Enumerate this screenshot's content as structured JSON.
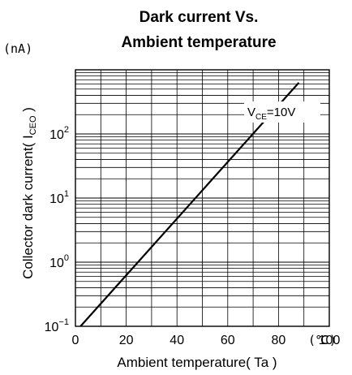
{
  "chart_data": {
    "type": "line",
    "title_line1": "Dark current Vs.",
    "title_line2": "Ambient temperature",
    "xlabel": "Ambient temperature( Ta )",
    "x_unit": "(℃)",
    "ylabel_main": "Collector dark current( I",
    "ylabel_sub": "CEO",
    "ylabel_close": " )",
    "y_unit": "(nA)",
    "xlim": [
      0,
      100
    ],
    "ylim": [
      0.1,
      1000
    ],
    "y_scale": "log",
    "grid": true,
    "x_ticks": [
      0,
      20,
      40,
      60,
      80,
      100
    ],
    "x_tick_labels": [
      "0",
      "20",
      "40",
      "60",
      "80",
      "100"
    ],
    "y_ticks": [
      {
        "value": 0.1,
        "base": "10",
        "exp": "−1"
      },
      {
        "value": 1,
        "base": "10",
        "exp": "0"
      },
      {
        "value": 10,
        "base": "10",
        "exp": "1"
      },
      {
        "value": 100,
        "base": "10",
        "exp": "2"
      }
    ],
    "annotation": {
      "base": "V",
      "sub": "CE",
      "rest": "=10V"
    },
    "series": [
      {
        "x": [
          2,
          88
        ],
        "y": [
          0.1,
          630
        ]
      }
    ]
  }
}
